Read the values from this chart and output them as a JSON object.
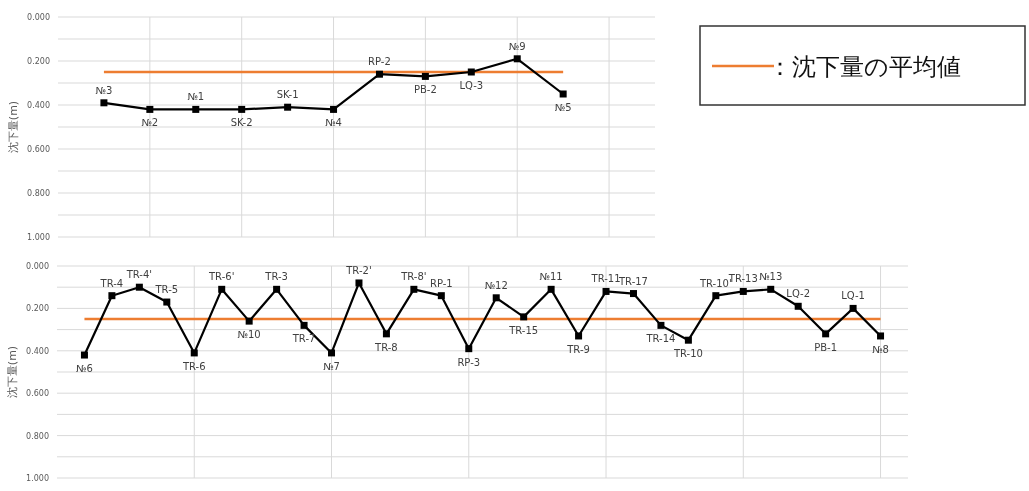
{
  "chart_data": [
    {
      "type": "line",
      "ylabel": "沈下量(m)",
      "categories": [
        "№3",
        "№2",
        "№1",
        "SK-2",
        "SK-1",
        "№4",
        "RP-2",
        "PB-2",
        "LQ-3",
        "№9",
        "№5"
      ],
      "values": [
        0.39,
        0.42,
        0.42,
        0.42,
        0.41,
        0.42,
        0.26,
        0.27,
        0.25,
        0.19,
        0.35
      ],
      "color": "#000000",
      "marker": "square",
      "grid": true,
      "ylim": [
        1.0,
        0.0
      ],
      "yticks": [
        {
          "value": 0,
          "label": "0.000"
        },
        {
          "value": 0.1,
          "label": null
        },
        {
          "value": 0.2,
          "label": "0.200"
        },
        {
          "value": 0.3,
          "label": null
        },
        {
          "value": 0.4,
          "label": "0.400"
        },
        {
          "value": 0.5,
          "label": null
        },
        {
          "value": 0.6,
          "label": "0.600"
        },
        {
          "value": 0.7,
          "label": null
        },
        {
          "value": 0.8,
          "label": "0.800"
        },
        {
          "value": 0.9,
          "label": null
        },
        {
          "value": 1.0,
          "label": "1.000"
        }
      ],
      "ref_lines": [
        {
          "axis": "y",
          "value": 0.25,
          "color": "#ed7d31"
        }
      ],
      "annotations": [
        "：沈下量の平均値"
      ]
    },
    {
      "type": "line",
      "ylabel": "沈下量(m)",
      "categories": [
        "№6",
        "TR-4",
        "TR-4'",
        "TR-5",
        "TR-6",
        "TR-6'",
        "№10",
        "TR-3",
        "TR-7",
        "№7",
        "TR-2'",
        "TR-8",
        "TR-8'",
        "RP-1",
        "RP-3",
        "№12",
        "TR-15",
        "№11",
        "TR-9",
        "TR-11",
        "TR-17",
        "TR-14",
        "TR-10",
        "TR-10'",
        "TR-13",
        "№13",
        "LQ-2",
        "PB-1",
        "LQ-1",
        "№8"
      ],
      "values": [
        0.42,
        0.14,
        0.1,
        0.17,
        0.41,
        0.11,
        0.26,
        0.11,
        0.28,
        0.41,
        0.08,
        0.32,
        0.11,
        0.14,
        0.39,
        0.15,
        0.24,
        0.11,
        0.33,
        0.12,
        0.13,
        0.28,
        0.35,
        0.14,
        0.12,
        0.11,
        0.19,
        0.32,
        0.2,
        0.33
      ],
      "color": "#000000",
      "marker": "square",
      "grid": true,
      "ylim": [
        1.0,
        0.0
      ],
      "yticks": [
        {
          "value": 0,
          "label": "0.000"
        },
        {
          "value": 0.1,
          "label": null
        },
        {
          "value": 0.2,
          "label": "0.200"
        },
        {
          "value": 0.3,
          "label": null
        },
        {
          "value": 0.4,
          "label": "0.400"
        },
        {
          "value": 0.5,
          "label": null
        },
        {
          "value": 0.6,
          "label": "0.600"
        },
        {
          "value": 0.7,
          "label": null
        },
        {
          "value": 0.8,
          "label": "0.800"
        },
        {
          "value": 0.9,
          "label": null
        },
        {
          "value": 1.0,
          "label": "1.000"
        }
      ],
      "ref_lines": [
        {
          "axis": "y",
          "value": 0.25,
          "color": "#ed7d31"
        }
      ]
    }
  ]
}
